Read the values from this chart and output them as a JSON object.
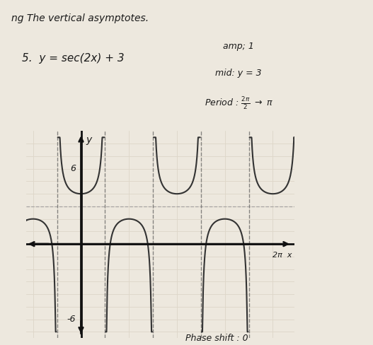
{
  "title_line1": "ng The vertical asymptotes.",
  "problem_label": "5.",
  "equation_text": "y = sec(2x) + 3",
  "ann_amp": "amp; 1",
  "ann_mid": "mid: y = 3",
  "ann_period_label": "Period : ",
  "ann_phase": "Phase shift : 0",
  "x_label": "2π  x",
  "y_label": "y",
  "xlim": [
    -1.8,
    7.0
  ],
  "ylim": [
    -7.5,
    9.0
  ],
  "x_axis_y": 0,
  "y_axis_x": 0,
  "ytick_pos": 6,
  "ytick_neg": -6,
  "paper_color": "#ede8de",
  "line_color": "#ddd6c8",
  "axis_color": "#111111",
  "curve_color": "#333333",
  "asymp_color": "#666666",
  "midline_color": "#999999",
  "header_bg": "#d8d0c0",
  "pi": 3.14159265358979
}
